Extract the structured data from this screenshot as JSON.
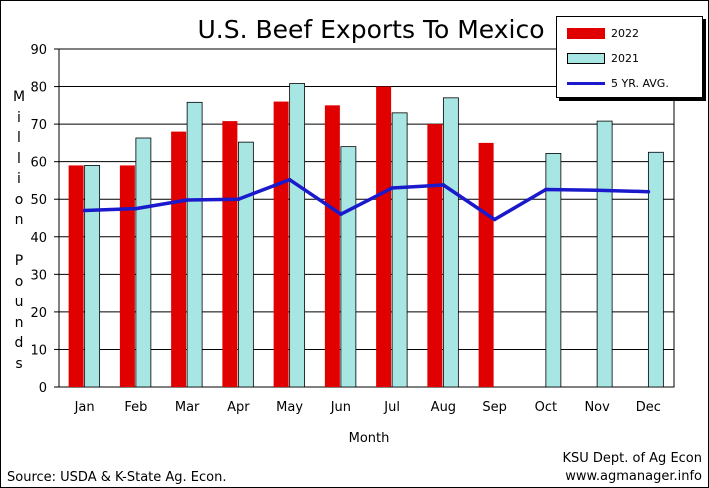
{
  "colors": {
    "series_2022": "#e00000",
    "series_2021": "#a8e6e4",
    "series_avg": "#1a1acc",
    "background": "#ffffff"
  },
  "chart_data": {
    "type": "bar",
    "title": "U.S. Beef Exports To Mexico",
    "xlabel": "Month",
    "ylabel": "Million Pounds",
    "categories": [
      "Jan",
      "Feb",
      "Mar",
      "Apr",
      "May",
      "Jun",
      "Jul",
      "Aug",
      "Sep",
      "Oct",
      "Nov",
      "Dec"
    ],
    "ylim": [
      0,
      90
    ],
    "yticks": [
      0,
      10,
      20,
      30,
      40,
      50,
      60,
      70,
      80,
      90
    ],
    "grid": true,
    "legend_position": "top-right",
    "series": [
      {
        "name": "2022",
        "kind": "bar",
        "color": "#e00000",
        "values": [
          59,
          59,
          68,
          70.8,
          76,
          75,
          80,
          70,
          65,
          null,
          null,
          null
        ]
      },
      {
        "name": "2021",
        "kind": "bar",
        "color": "#a8e6e4",
        "values": [
          59,
          66.3,
          75.8,
          65.2,
          80.8,
          64,
          73,
          77,
          null,
          62.2,
          70.8,
          62.5
        ]
      },
      {
        "name": "5 YR. AVG.",
        "kind": "line",
        "color": "#1a1acc",
        "values": [
          47,
          47.5,
          49.8,
          50,
          55.2,
          46,
          53,
          53.8,
          44.6,
          52.6,
          52.4,
          52
        ]
      }
    ]
  },
  "footer": {
    "source": "Source:  USDA & K-State Ag. Econ.",
    "credit_line1": "KSU Dept. of Ag Econ",
    "credit_line2": "www.agmanager.info"
  }
}
